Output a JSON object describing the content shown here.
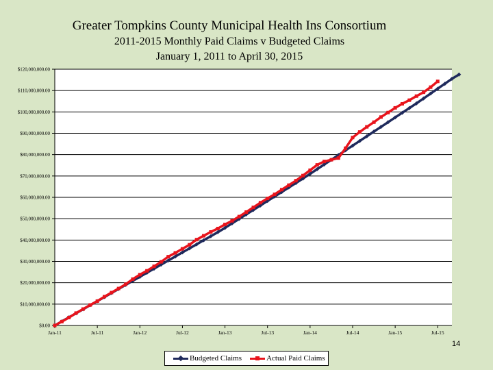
{
  "slide": {
    "title_line1": "Greater Tompkins County Municipal Health Ins Consortium",
    "title_line2": "2011-2015 Monthly Paid Claims v Budgeted Claims",
    "title_line3": "January 1, 2011 to April 30, 2015",
    "page_number": "14"
  },
  "colors": {
    "background": "#d9e6c6",
    "plot_area": "#ffffff",
    "budgeted": "#1f2a5c",
    "actual": "#e8141c"
  },
  "chart_data": {
    "type": "line",
    "title": "",
    "xlabel": "",
    "ylabel": "",
    "x_tick_labels": [
      "Jan-11",
      "Jul-11",
      "Jan-12",
      "Jul-12",
      "Jan-13",
      "Jul-13",
      "Jan-14",
      "Jul-14",
      "Jan-15",
      "Jul-15"
    ],
    "y_tick_labels": [
      "$0.00",
      "$10,000,000.00",
      "$20,000,000.00",
      "$30,000,000.00",
      "$40,000,000.00",
      "$50,000,000.00",
      "$60,000,000.00",
      "$70,000,000.00",
      "$80,000,000.00",
      "$90,000,000.00",
      "$100,000,000.00",
      "$110,000,000.00",
      "$120,000,000.00"
    ],
    "ylim": [
      0,
      120000000
    ],
    "x_months_range": [
      "2011-01",
      "2015-09"
    ],
    "grid": "horizontal",
    "legend_position": "bottom",
    "series": [
      {
        "name": "Budgeted Claims",
        "color": "#1f2a5c",
        "start_month": "2011-01",
        "values": [
          0,
          1900000,
          3800000,
          5700000,
          7600000,
          9500000,
          11400000,
          13300000,
          15200000,
          17100000,
          19000000,
          20900000,
          22800000,
          24700000,
          26600000,
          28500000,
          30400000,
          32300000,
          34200000,
          36100000,
          38000000,
          39900000,
          41800000,
          43700000,
          45700000,
          47800000,
          49900000,
          52000000,
          54100000,
          56200000,
          58300000,
          60400000,
          62500000,
          64600000,
          66700000,
          68800000,
          71000000,
          73200000,
          75400000,
          77600000,
          79800000,
          82000000,
          84200000,
          86400000,
          88600000,
          90800000,
          93000000,
          95200000,
          97400000,
          99600000,
          101800000,
          104000000,
          106300000,
          108600000,
          110900000,
          113200000,
          115500000,
          117500000
        ]
      },
      {
        "name": "Actual Paid Claims",
        "color": "#e8141c",
        "start_month": "2011-01",
        "values": [
          0,
          1800000,
          3700000,
          5800000,
          7700000,
          9600000,
          11400000,
          13500000,
          15400000,
          17300000,
          19300000,
          21700000,
          23800000,
          25600000,
          27700000,
          29800000,
          32200000,
          34000000,
          35900000,
          37800000,
          40200000,
          42000000,
          43800000,
          45400000,
          47300000,
          49000000,
          51000000,
          53100000,
          55300000,
          57500000,
          59500000,
          61400000,
          63600000,
          65700000,
          67800000,
          70200000,
          72700000,
          75200000,
          76800000,
          77600000,
          78400000,
          83000000,
          88000000,
          90600000,
          93000000,
          95200000,
          97600000,
          99700000,
          101900000,
          103800000,
          105500000,
          107400000,
          109200000,
          111600000,
          114300000
        ]
      }
    ]
  }
}
